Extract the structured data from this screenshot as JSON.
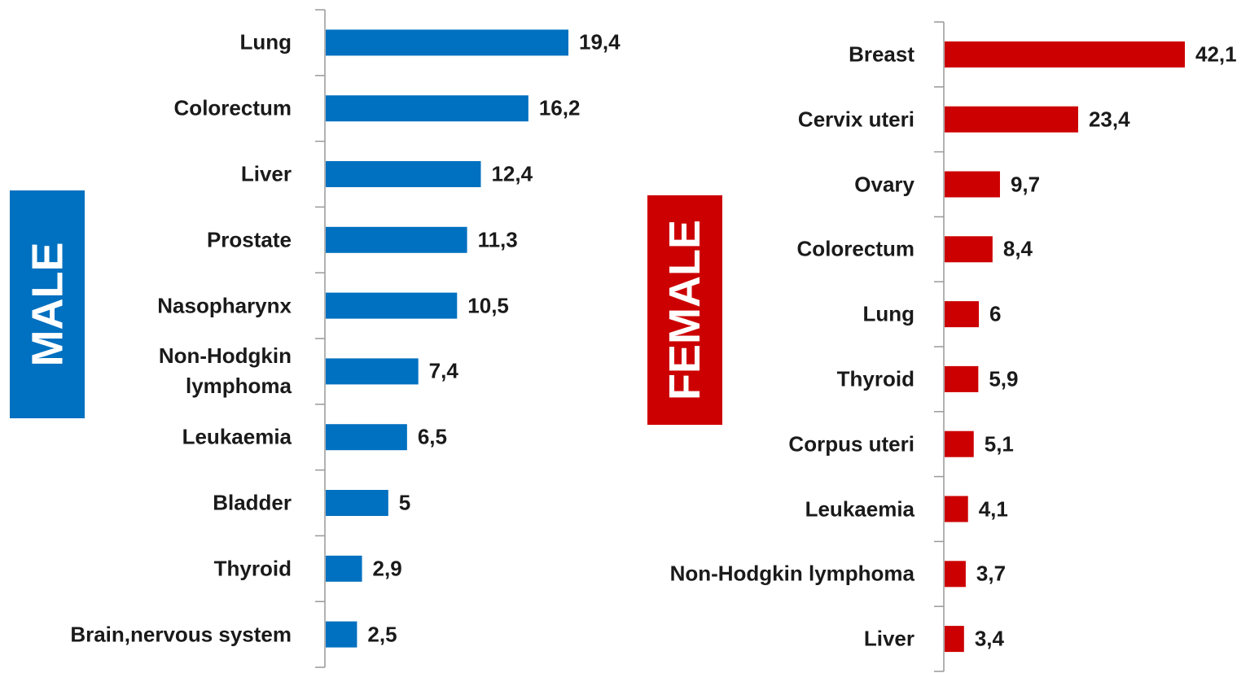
{
  "chart_data": [
    {
      "type": "bar",
      "orientation": "horizontal",
      "title": "MALE",
      "color": "#0070c0",
      "categories": [
        "Lung",
        "Colorectum",
        "Liver",
        "Prostate",
        "Nasopharynx",
        "Non-Hodgkin\nlymphoma",
        "Leukaemia",
        "Bladder",
        "Thyroid",
        "Brain,nervous system"
      ],
      "values": [
        19.4,
        16.2,
        12.4,
        11.3,
        10.5,
        7.4,
        6.5,
        5,
        2.9,
        2.5
      ],
      "value_labels": [
        "19,4",
        "16,2",
        "12,4",
        "11,3",
        "10,5",
        "7,4",
        "6,5",
        "5",
        "2,9",
        "2,5"
      ]
    },
    {
      "type": "bar",
      "orientation": "horizontal",
      "title": "FEMALE",
      "color": "#cc0000",
      "categories": [
        "Breast",
        "Cervix uteri",
        "Ovary",
        "Colorectum",
        "Lung",
        "Thyroid",
        "Corpus uteri",
        "Leukaemia",
        "Non-Hodgkin lymphoma",
        "Liver"
      ],
      "values": [
        42.1,
        23.4,
        9.7,
        8.4,
        6,
        5.9,
        5.1,
        4.1,
        3.7,
        3.4
      ],
      "value_labels": [
        "42,1",
        "23,4",
        "9,7",
        "8,4",
        "6",
        "5,9",
        "5,1",
        "4,1",
        "3,7",
        "3,4"
      ]
    }
  ]
}
